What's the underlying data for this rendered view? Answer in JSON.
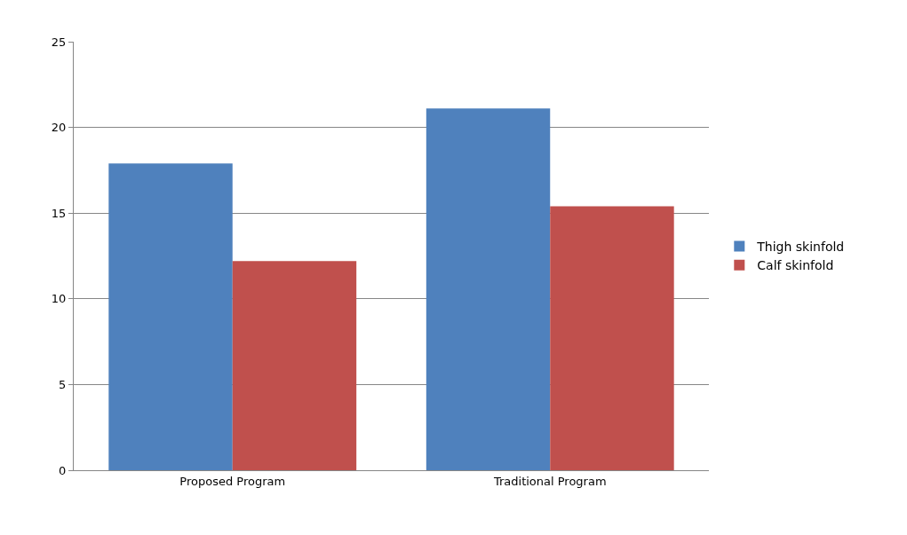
{
  "chart_data": {
    "type": "bar",
    "categories": [
      "Proposed Program",
      "Traditional Program"
    ],
    "series": [
      {
        "name": "Thigh skinfold",
        "color": "#4f81bd",
        "values": [
          17.9,
          21.1
        ]
      },
      {
        "name": "Calf skinfold",
        "color": "#c0504d",
        "values": [
          12.2,
          15.4
        ]
      }
    ],
    "ylim": [
      0,
      25
    ],
    "yticks": [
      0,
      5,
      10,
      15,
      20,
      25
    ],
    "grid": "y",
    "legend": "right"
  }
}
